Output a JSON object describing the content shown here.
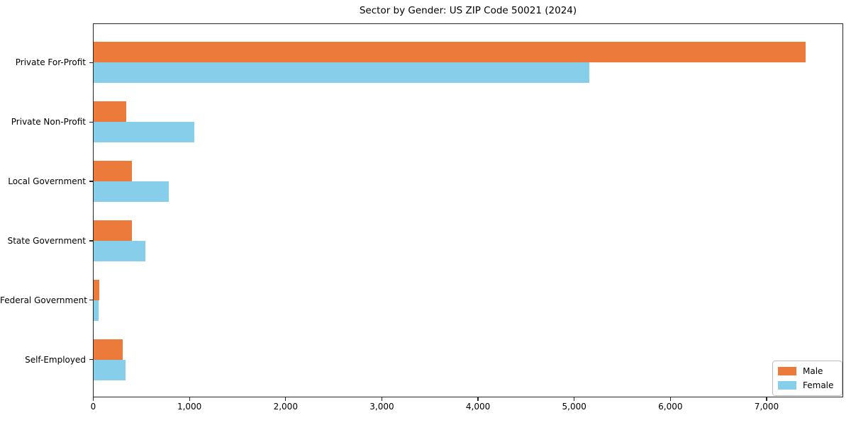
{
  "title": "Sector by Gender: US ZIP Code 50021 (2024)",
  "colors": {
    "male": "#ec7a3b",
    "female": "#87ceeb",
    "axis": "#262626",
    "text": "#000000",
    "background": "#ffffff",
    "legend_border": "#bdbdbd"
  },
  "legend": {
    "position": "lower right",
    "items": [
      {
        "label": "Male",
        "color": "#ec7a3b"
      },
      {
        "label": "Female",
        "color": "#87ceeb"
      }
    ]
  },
  "chart_data": {
    "type": "bar",
    "orientation": "horizontal",
    "title": "Sector by Gender: US ZIP Code 50021 (2024)",
    "categories": [
      "Private For-Profit",
      "Private Non-Profit",
      "Local Government",
      "State Government",
      "Federal Government",
      "Self-Employed"
    ],
    "series": [
      {
        "name": "Male",
        "color": "#ec7a3b",
        "values": [
          7400,
          340,
          395,
          400,
          60,
          305
        ]
      },
      {
        "name": "Female",
        "color": "#87ceeb",
        "values": [
          5150,
          1045,
          780,
          540,
          55,
          335
        ]
      }
    ],
    "xlabel": "",
    "ylabel": "",
    "xlim": [
      0,
      7800
    ],
    "xticks": [
      0,
      1000,
      2000,
      3000,
      4000,
      5000,
      6000,
      7000
    ],
    "xtick_labels": [
      "0",
      "1,000",
      "2,000",
      "3,000",
      "4,000",
      "5,000",
      "6,000",
      "7,000"
    ],
    "grid": false,
    "legend_position": "lower right"
  }
}
